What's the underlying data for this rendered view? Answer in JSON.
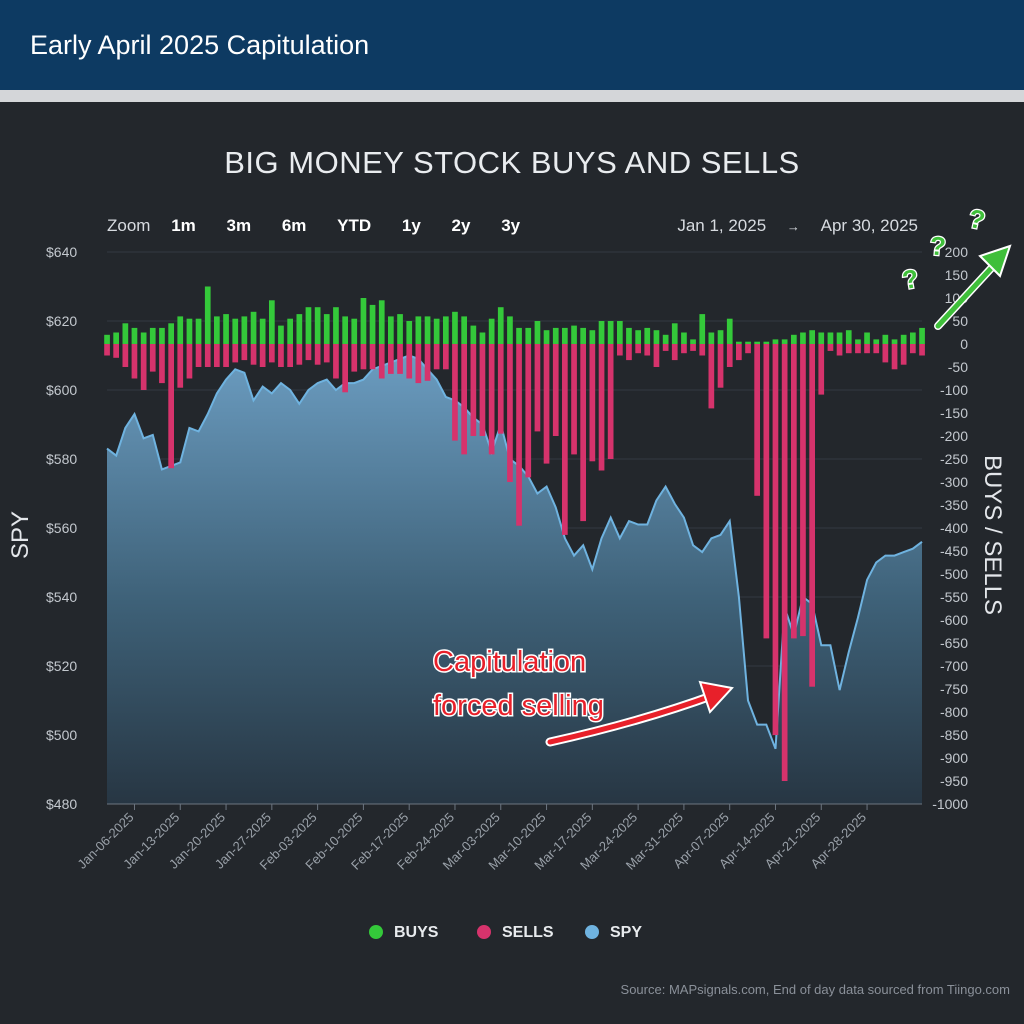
{
  "banner": {
    "title": "Early April 2025 Capitulation"
  },
  "chart_title": "BIG MONEY STOCK BUYS AND SELLS",
  "zoom": {
    "label": "Zoom",
    "options": [
      "1m",
      "3m",
      "6m",
      "YTD",
      "1y",
      "2y",
      "3y"
    ]
  },
  "range": {
    "from": "Jan 1, 2025",
    "arrow": "→",
    "to": "Apr 30, 2025"
  },
  "annotation": {
    "line1": "Capitulation",
    "line2": "forced selling"
  },
  "source": "Source: MAPsignals.com, End of day data sourced from Tiingo.com",
  "colors": {
    "buys": "#34c93a",
    "sells": "#d6336c",
    "spy": "#6fb3e0",
    "annotation": "#e8202a",
    "doodle": "#3fbf3a"
  },
  "chart_data": {
    "type": "bar+area",
    "title": "BIG MONEY STOCK BUYS AND SELLS",
    "y_left_label": "SPY",
    "y_right_label": "BUYS / SELLS",
    "y_left_ticks": [
      "$640",
      "$620",
      "$600",
      "$580",
      "$560",
      "$540",
      "$520",
      "$500",
      "$480"
    ],
    "y_left_range": [
      480,
      640
    ],
    "y_right_ticks": [
      "200",
      "150",
      "100",
      "50",
      "0",
      "-50",
      "-100",
      "-150",
      "-200",
      "-250",
      "-300",
      "-350",
      "-400",
      "-450",
      "-500",
      "-550",
      "-600",
      "-650",
      "-700",
      "-750",
      "-800",
      "-850",
      "-900",
      "-950",
      "-1000"
    ],
    "y_right_range": [
      -1000,
      200
    ],
    "x_ticks": [
      {
        "label": "Jan-06-2025",
        "day": 3
      },
      {
        "label": "Jan-13-2025",
        "day": 8
      },
      {
        "label": "Jan-20-2025",
        "day": 13
      },
      {
        "label": "Jan-27-2025",
        "day": 18
      },
      {
        "label": "Feb-03-2025",
        "day": 23
      },
      {
        "label": "Feb-10-2025",
        "day": 28
      },
      {
        "label": "Feb-17-2025",
        "day": 33
      },
      {
        "label": "Feb-24-2025",
        "day": 38
      },
      {
        "label": "Mar-03-2025",
        "day": 43
      },
      {
        "label": "Mar-10-2025",
        "day": 48
      },
      {
        "label": "Mar-17-2025",
        "day": 53
      },
      {
        "label": "Mar-24-2025",
        "day": 58
      },
      {
        "label": "Mar-31-2025",
        "day": 63
      },
      {
        "label": "Apr-07-2025",
        "day": 68
      },
      {
        "label": "Apr-14-2025",
        "day": 73
      },
      {
        "label": "Apr-21-2025",
        "day": 78
      },
      {
        "label": "Apr-28-2025",
        "day": 83
      }
    ],
    "series": [
      {
        "name": "BUYS",
        "values": [
          20,
          25,
          45,
          35,
          25,
          35,
          35,
          45,
          60,
          55,
          55,
          125,
          60,
          65,
          55,
          60,
          70,
          55,
          95,
          40,
          55,
          65,
          80,
          80,
          65,
          80,
          60,
          55,
          100,
          85,
          95,
          60,
          65,
          50,
          60,
          60,
          55,
          60,
          70,
          60,
          40,
          25,
          55,
          80,
          60,
          35,
          35,
          50,
          30,
          35,
          35,
          40,
          35,
          30,
          50,
          50,
          50,
          35,
          30,
          35,
          30,
          20,
          45,
          25,
          10,
          65,
          25,
          30,
          55,
          5,
          5,
          5,
          5,
          10,
          10,
          20,
          25,
          30,
          25,
          25,
          25,
          30,
          10,
          25,
          10,
          20,
          10,
          20,
          25,
          35
        ]
      },
      {
        "name": "SELLS",
        "values": [
          -25,
          -30,
          -50,
          -75,
          -100,
          -60,
          -85,
          -270,
          -95,
          -75,
          -50,
          -50,
          -50,
          -50,
          -40,
          -35,
          -45,
          -50,
          -40,
          -50,
          -50,
          -45,
          -35,
          -45,
          -40,
          -75,
          -105,
          -60,
          -55,
          -55,
          -75,
          -65,
          -65,
          -75,
          -85,
          -80,
          -55,
          -55,
          -210,
          -240,
          -200,
          -200,
          -240,
          -195,
          -300,
          -395,
          -290,
          -190,
          -260,
          -200,
          -415,
          -240,
          -385,
          -255,
          -275,
          -250,
          -25,
          -35,
          -20,
          -25,
          -50,
          -15,
          -35,
          -20,
          -15,
          -25,
          -140,
          -95,
          -50,
          -35,
          -20,
          -330,
          -640,
          -850,
          -950,
          -640,
          -635,
          -745,
          -110,
          -15,
          -25,
          -20,
          -20,
          -20,
          -20,
          -40,
          -55,
          -45,
          -20,
          -25
        ]
      },
      {
        "name": "SPY",
        "values": [
          583,
          581,
          589,
          593,
          586,
          587,
          577,
          578,
          579,
          589,
          588,
          593,
          599,
          603,
          606,
          605,
          597,
          601,
          599,
          602,
          600,
          596,
          600,
          602,
          603,
          600,
          602,
          602,
          603,
          606,
          607,
          608,
          609,
          610,
          609,
          606,
          603,
          598,
          597,
          595,
          592,
          590,
          582,
          590,
          580,
          578,
          575,
          570,
          572,
          566,
          557,
          552,
          555,
          548,
          557,
          563,
          557,
          562,
          561,
          561,
          568,
          572,
          567,
          563,
          555,
          553,
          557,
          558,
          562,
          540,
          510,
          503,
          503,
          496,
          537,
          529,
          540,
          538,
          526,
          526,
          513,
          524,
          534,
          545,
          550,
          552,
          552,
          553,
          554,
          556
        ]
      }
    ],
    "legend": {
      "position": "bottom-center",
      "items": [
        "BUYS",
        "SELLS",
        "SPY"
      ]
    },
    "grid": true
  }
}
